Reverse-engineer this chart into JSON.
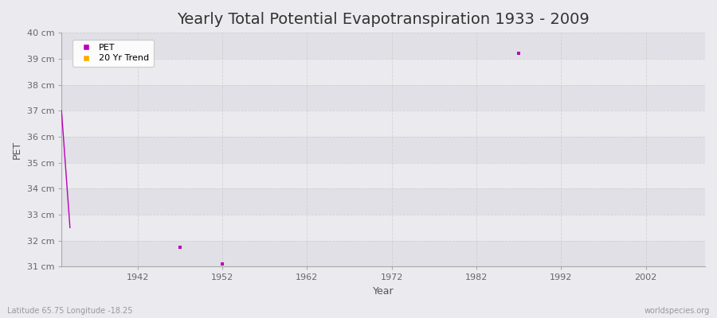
{
  "title": "Yearly Total Potential Evapotranspiration 1933 - 2009",
  "xlabel": "Year",
  "ylabel": "PET",
  "ylim": [
    31,
    40
  ],
  "xlim": [
    1933,
    2009
  ],
  "ytick_values": [
    31,
    32,
    33,
    34,
    35,
    36,
    37,
    38,
    39,
    40
  ],
  "ytick_labels": [
    "31 cm",
    "32 cm",
    "33 cm",
    "34 cm",
    "35 cm",
    "36 cm",
    "37 cm",
    "38 cm",
    "39 cm",
    "40 cm"
  ],
  "xtick_values": [
    1942,
    1952,
    1962,
    1972,
    1982,
    1992,
    2002
  ],
  "pet_line_x": [
    1933,
    1934
  ],
  "pet_line_y": [
    37.0,
    32.5
  ],
  "pet_scatter_x": [
    1947,
    1952,
    1987
  ],
  "pet_scatter_y": [
    31.75,
    31.1,
    39.2
  ],
  "pet_color": "#bb00bb",
  "trend_color": "#ffaa00",
  "bg_color": "#ebebef",
  "band_color_light": "#ebebef",
  "band_color_dark": "#e0e0e6",
  "grid_color": "#cccccc",
  "title_fontsize": 14,
  "axis_label_fontsize": 9,
  "tick_fontsize": 8,
  "footnote_left": "Latitude 65.75 Longitude -18.25",
  "footnote_right": "worldspecies.org"
}
